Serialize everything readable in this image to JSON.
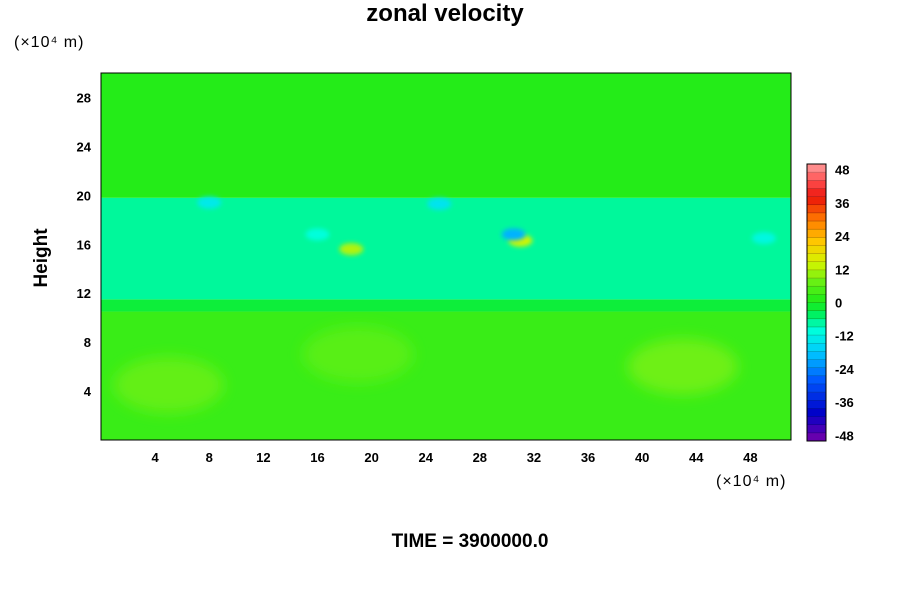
{
  "chart_data": {
    "type": "heatmap",
    "title": "zonal velocity",
    "ylabel": "Height",
    "yunit_label": "(×10⁴ m)",
    "xunit_label": "(×10⁴ m)",
    "footer": "TIME = 3900000.0",
    "xlim": [
      0,
      51
    ],
    "ylim": [
      0,
      30
    ],
    "xticks": [
      4,
      8,
      12,
      16,
      20,
      24,
      28,
      32,
      36,
      40,
      44,
      48
    ],
    "yticks": [
      4,
      8,
      12,
      16,
      20,
      24,
      28
    ],
    "colorbar": {
      "range": [
        -50,
        50
      ],
      "ticks": [
        48,
        36,
        24,
        12,
        0,
        -12,
        -24,
        -36,
        -48
      ],
      "levels": 34
    },
    "bands": [
      {
        "y": [
          0,
          10.5
        ],
        "value": 3
      },
      {
        "y": [
          10.5,
          11.5
        ],
        "value": -2
      },
      {
        "y": [
          11.5,
          19.8
        ],
        "value": -7
      },
      {
        "y": [
          19.8,
          30
        ],
        "value": 1
      }
    ],
    "features": [
      {
        "x": 43,
        "y": 6,
        "value": 8
      },
      {
        "x": 5,
        "y": 4.5,
        "value": 7
      },
      {
        "x": 19,
        "y": 7,
        "value": 6
      },
      {
        "x": 31,
        "y": 16.3,
        "value": 14
      },
      {
        "x": 18.5,
        "y": 15.6,
        "value": 12
      },
      {
        "x": 30.5,
        "y": 16.8,
        "value": -20
      },
      {
        "x": 25,
        "y": 19.3,
        "value": -14
      },
      {
        "x": 8,
        "y": 19.4,
        "value": -13
      },
      {
        "x": 16,
        "y": 16.8,
        "value": -10
      },
      {
        "x": 49,
        "y": 16.5,
        "value": -11
      }
    ]
  }
}
